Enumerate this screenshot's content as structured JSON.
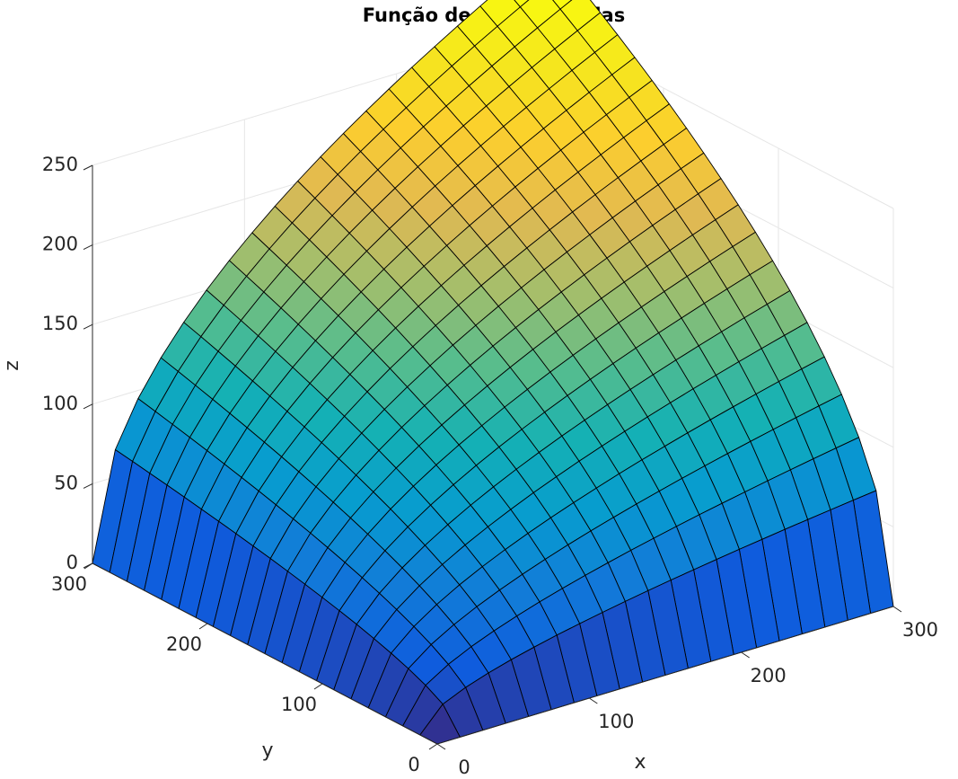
{
  "chart_data": {
    "type": "surface",
    "title": "Função de Cobb-Douglas",
    "xlabel": "x",
    "ylabel": "y",
    "zlabel": "z",
    "function": "z = x^0.5 * y^0.5",
    "x": [
      0,
      15,
      30,
      45,
      60,
      75,
      90,
      105,
      120,
      135,
      150,
      165,
      180,
      195,
      210,
      225,
      240,
      255,
      270,
      285,
      300
    ],
    "y": [
      0,
      15,
      30,
      45,
      60,
      75,
      90,
      105,
      120,
      135,
      150,
      165,
      180,
      195,
      210,
      225,
      240,
      255,
      270,
      285,
      300
    ],
    "xlim": [
      0,
      300
    ],
    "ylim": [
      0,
      300
    ],
    "zlim": [
      0,
      250
    ],
    "x_ticks": [
      "0",
      "100",
      "200",
      "300"
    ],
    "y_ticks": [
      "0",
      "100",
      "200",
      "300"
    ],
    "z_ticks": [
      "0",
      "50",
      "100",
      "150",
      "200",
      "250"
    ],
    "colormap": "parula",
    "grid": true,
    "edge_color": "#000000"
  }
}
